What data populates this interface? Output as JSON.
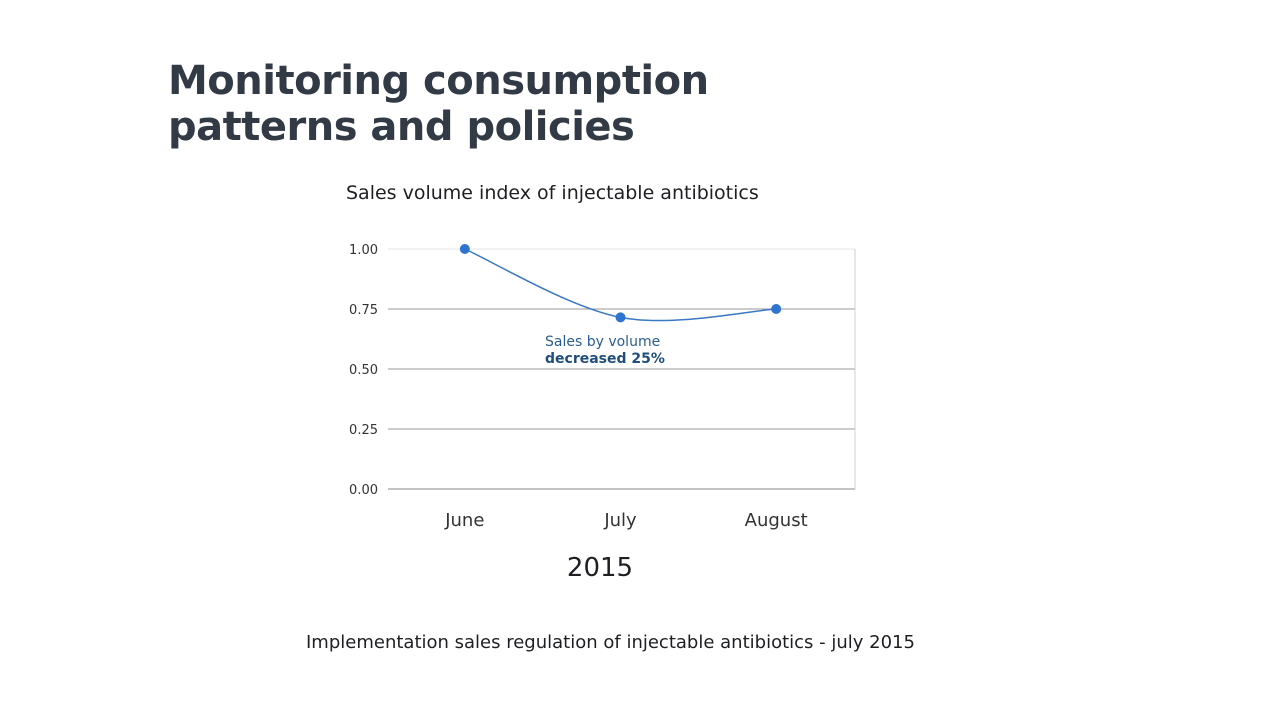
{
  "slide": {
    "title_line1": "Monitoring consumption",
    "title_line2": "patterns and policies",
    "footnote": "Implementation sales regulation of injectable antibiotics - july 2015"
  },
  "colors": {
    "line": "#3b78c4",
    "marker": "#2f74cf",
    "grid": "#9a9a9a",
    "title": "#323a45"
  },
  "chart_data": {
    "type": "line",
    "title": "Sales volume index of injectable antibiotics",
    "categories": [
      "June",
      "July",
      "August"
    ],
    "series": [
      {
        "values": [
          1.0,
          0.715,
          0.75
        ]
      }
    ],
    "xlabel": "2015",
    "ylabel": "",
    "ylim": [
      0,
      1
    ],
    "yticks": [
      "0.00",
      "0.25",
      "0.50",
      "0.75",
      "1.00"
    ],
    "grid": true,
    "annotation": {
      "line1": "Sales by volume",
      "line2": "decreased 25%"
    }
  }
}
